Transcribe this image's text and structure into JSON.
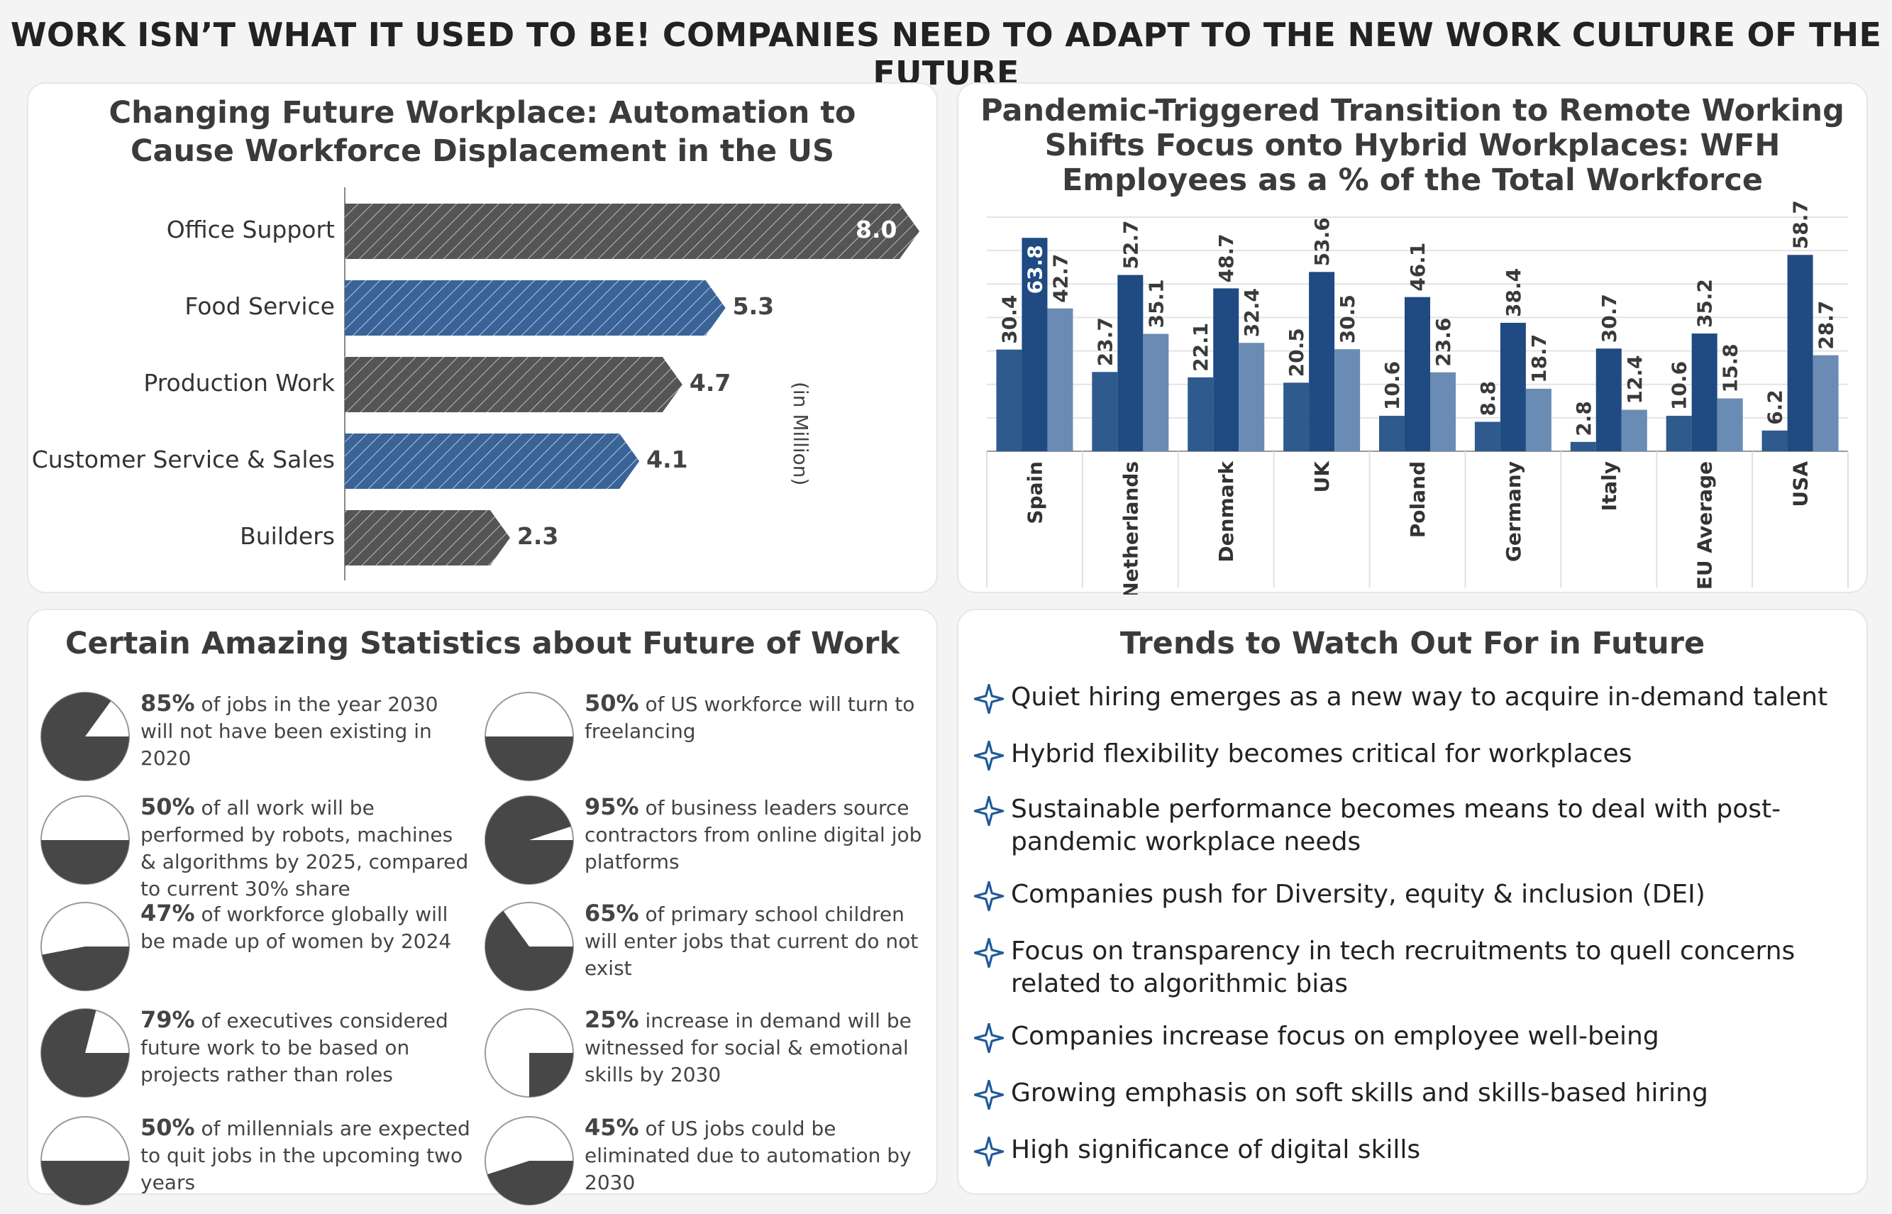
{
  "page": {
    "main_title": "WORK ISN’T WHAT IT USED TO BE! COMPANIES NEED TO ADAPT TO THE NEW WORK CULTURE OF THE FUTURE"
  },
  "colors": {
    "gray_bar": "#555555",
    "blue_bar": "#3a6397",
    "series1": "#2e5a8e",
    "series2": "#1f4a82",
    "series3": "#6a8bb3",
    "pie_dark": "#474747",
    "star": "#1f5a9a"
  },
  "chart_data": [
    {
      "type": "bar",
      "orientation": "horizontal",
      "title": "Changing Future Workplace: Automation to Cause Workforce Displacement in the US",
      "unit_label": "(in Million)",
      "categories": [
        "Office Support",
        "Food Service",
        "Production Work",
        "Customer Service & Sales",
        "Builders"
      ],
      "values": [
        8.0,
        5.3,
        4.7,
        4.1,
        2.3
      ],
      "value_labels": [
        "8.0",
        "5.3",
        "4.7",
        "4.1",
        "2.3"
      ],
      "bar_colors": [
        "gray",
        "blue",
        "gray",
        "blue",
        "gray"
      ],
      "xlim": [
        0,
        8.0
      ]
    },
    {
      "type": "bar",
      "title": "Pandemic-Triggered Transition to Remote Working Shifts Focus onto Hybrid Workplaces: WFH Employees as a % of the Total Workforce",
      "categories": [
        "Spain",
        "Netherlands",
        "Denmark",
        "UK",
        "Poland",
        "Germany",
        "Italy",
        "EU Average",
        "USA"
      ],
      "series": [
        {
          "values": [
            30.4,
            23.7,
            22.1,
            20.5,
            10.6,
            8.8,
            2.8,
            10.6,
            6.2
          ],
          "labels": [
            "30.4",
            "23.7",
            "22.1",
            "20.5",
            "10.6",
            "8.8",
            "2.8",
            "10.6",
            "6.2"
          ]
        },
        {
          "values": [
            63.8,
            52.7,
            48.7,
            53.6,
            46.1,
            38.4,
            30.7,
            35.2,
            58.7
          ],
          "labels": [
            "63.8",
            "52.7",
            "48.7",
            "53.6",
            "46.1",
            "38.4",
            "30.7",
            "35.2",
            "58.7"
          ]
        },
        {
          "values": [
            42.7,
            35.1,
            32.4,
            30.5,
            23.6,
            18.7,
            12.4,
            15.8,
            28.7
          ],
          "labels": [
            "42.7",
            "35.1",
            "32.4",
            "30.5",
            "23.6",
            "18.7",
            "12.4",
            "15.8",
            "28.7"
          ]
        }
      ],
      "ylim": [
        0,
        70
      ],
      "grid": true
    }
  ],
  "stats": {
    "title": "Certain Amazing Statistics about Future of Work",
    "items": [
      {
        "pct": 85,
        "pct_label": "85%",
        "text": " of jobs in the year 2030 will not have been existing in 2020"
      },
      {
        "pct": 50,
        "pct_label": "50%",
        "text": " of US workforce will turn to freelancing"
      },
      {
        "pct": 50,
        "pct_label": "50%",
        "text": " of all work will be performed by robots, machines & algorithms by 2025, compared to current 30% share"
      },
      {
        "pct": 95,
        "pct_label": "95%",
        "text": " of business leaders source contractors from online digital job platforms"
      },
      {
        "pct": 47,
        "pct_label": "47%",
        "text": " of workforce globally will be made up of women by 2024"
      },
      {
        "pct": 65,
        "pct_label": "65%",
        "text": " of primary school children will enter jobs that current do not exist"
      },
      {
        "pct": 79,
        "pct_label": "79%",
        "text": " of executives considered future work to be based on projects rather than roles"
      },
      {
        "pct": 25,
        "pct_label": "25%",
        "text": " increase in demand will be witnessed for social & emotional skills by 2030"
      },
      {
        "pct": 50,
        "pct_label": "50%",
        "text": " of millennials are expected to quit jobs in the upcoming two years"
      },
      {
        "pct": 45,
        "pct_label": "45%",
        "text": " of US jobs could be eliminated due to automation by 2030"
      }
    ]
  },
  "trends": {
    "title": "Trends to Watch Out For in Future",
    "items": [
      "Quiet hiring emerges as a new way to acquire in-demand talent",
      "Hybrid flexibility becomes critical for workplaces",
      "Sustainable performance becomes means to deal with post-pandemic workplace needs",
      "Companies push for Diversity, equity & inclusion (DEI)",
      "Focus on transparency in tech recruitments to quell concerns related to algorithmic bias",
      "Companies increase focus on employee well-being",
      "Growing emphasis on soft skills and skills-based hiring",
      "High significance of digital skills"
    ],
    "icon": "four-point-star-icon"
  }
}
